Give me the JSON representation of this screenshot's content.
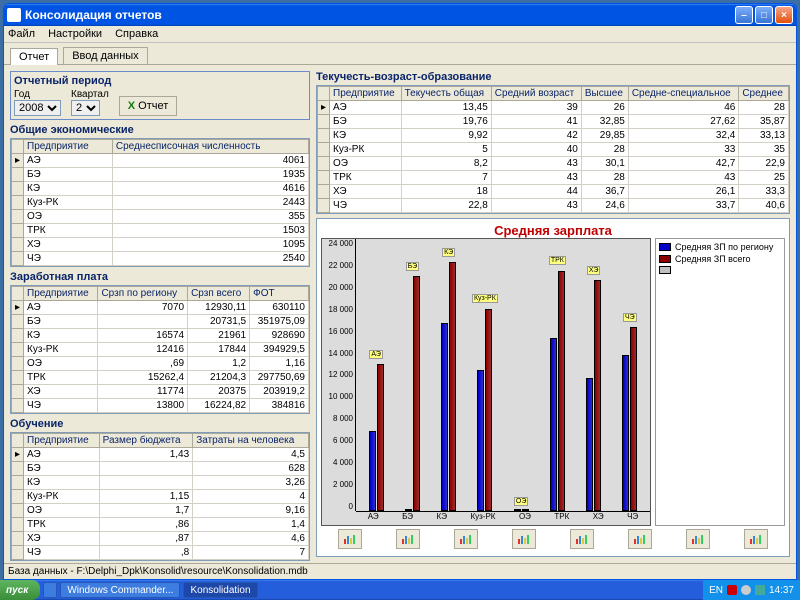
{
  "window": {
    "title": "Консолидация отчетов"
  },
  "menu": [
    "Файл",
    "Настройки",
    "Справка"
  ],
  "tabs": {
    "report": "Отчет",
    "input": "Ввод данных"
  },
  "period": {
    "title": "Отчетный период",
    "year_label": "Год",
    "year": "2008",
    "quarter_label": "Квартал",
    "quarter": "2",
    "btn": "Отчет"
  },
  "tbl_general": {
    "title": "Общие экономические",
    "cols": [
      "Предприятие",
      "Среднесписочная численность"
    ],
    "rows": [
      [
        "АЭ",
        "4061"
      ],
      [
        "БЭ",
        "1935"
      ],
      [
        "КЭ",
        "4616"
      ],
      [
        "Куз-РК",
        "2443"
      ],
      [
        "ОЭ",
        "355"
      ],
      [
        "ТРК",
        "1503"
      ],
      [
        "ХЭ",
        "1095"
      ],
      [
        "ЧЭ",
        "2540"
      ]
    ]
  },
  "tbl_salary": {
    "title": "Заработная плата",
    "cols": [
      "Предприятие",
      "Срзп по региону",
      "Срзп всего",
      "ФОТ"
    ],
    "rows": [
      [
        "АЭ",
        "7070",
        "12930,11",
        "630110"
      ],
      [
        "БЭ",
        "",
        "20731,5",
        "351975,09"
      ],
      [
        "КЭ",
        "16574",
        "21961",
        "928690"
      ],
      [
        "Куз-РК",
        "12416",
        "17844",
        "394929,5"
      ],
      [
        "ОЭ",
        ",69",
        "1,2",
        "1,16"
      ],
      [
        "ТРК",
        "15262,4",
        "21204,3",
        "297750,69"
      ],
      [
        "ХЭ",
        "11774",
        "20375",
        "203919,2"
      ],
      [
        "ЧЭ",
        "13800",
        "16224,82",
        "384816"
      ]
    ]
  },
  "tbl_edu": {
    "title": "Обучение",
    "cols": [
      "Предприятие",
      "Размер бюджета",
      "Затраты на человека"
    ],
    "rows": [
      [
        "АЭ",
        "1,43",
        "4,5"
      ],
      [
        "БЭ",
        "",
        "628"
      ],
      [
        "КЭ",
        "",
        "3,26"
      ],
      [
        "Куз-РК",
        "1,15",
        "4"
      ],
      [
        "ОЭ",
        "1,7",
        "9,16"
      ],
      [
        "ТРК",
        ",86",
        "1,4"
      ],
      [
        "ХЭ",
        ",87",
        "4,6"
      ],
      [
        "ЧЭ",
        ",8",
        "7"
      ]
    ]
  },
  "tbl_turnover": {
    "title": "Текучесть-возраст-образование",
    "cols": [
      "Предприятие",
      "Текучесть общая",
      "Средний возраст",
      "Высшее",
      "Средне-специальное",
      "Среднее"
    ],
    "rows": [
      [
        "АЭ",
        "13,45",
        "39",
        "26",
        "46",
        "28"
      ],
      [
        "БЭ",
        "19,76",
        "41",
        "32,85",
        "27,62",
        "35,87"
      ],
      [
        "КЭ",
        "9,92",
        "42",
        "29,85",
        "32,4",
        "33,13"
      ],
      [
        "Куз-РК",
        "5",
        "40",
        "28",
        "33",
        "35"
      ],
      [
        "ОЭ",
        "8,2",
        "43",
        "30,1",
        "42,7",
        "22,9"
      ],
      [
        "ТРК",
        "7",
        "43",
        "28",
        "43",
        "25"
      ],
      [
        "ХЭ",
        "18",
        "44",
        "36,7",
        "26,1",
        "33,3"
      ],
      [
        "ЧЭ",
        "22,8",
        "43",
        "24,6",
        "33,7",
        "40,6"
      ]
    ]
  },
  "chart": {
    "title": "Средняя зарплата",
    "legend": [
      {
        "label": "Средняя ЗП по региону",
        "color": "#0000c8"
      },
      {
        "label": "Средняя ЗП всего",
        "color": "#8b0000"
      },
      {
        "label": "",
        "color": "#c0c0c0"
      }
    ],
    "ymax": 24000,
    "ytick": 2000,
    "categories": [
      "АЭ",
      "БЭ",
      "КЭ",
      "Куз-РК",
      "ОЭ",
      "ТРК",
      "ХЭ",
      "ЧЭ"
    ],
    "series": [
      {
        "color": "#0000c8",
        "vals": [
          7070,
          0,
          16574,
          12416,
          1,
          15262,
          11774,
          13800
        ]
      },
      {
        "color": "#8b0000",
        "vals": [
          12930,
          20731,
          21961,
          17844,
          1,
          21204,
          20375,
          16224
        ]
      }
    ],
    "bar_border": "#000000",
    "plot_bg": "#dcdcdc"
  },
  "status": "База данных - F:\\Delphi_Dpk\\Konsolid\\resource\\Konsolidation.mdb",
  "taskbar": {
    "start": "пуск",
    "items": [
      "",
      "Windows Commander...",
      "Konsolidation"
    ],
    "lang": "EN",
    "time": "14:37"
  }
}
